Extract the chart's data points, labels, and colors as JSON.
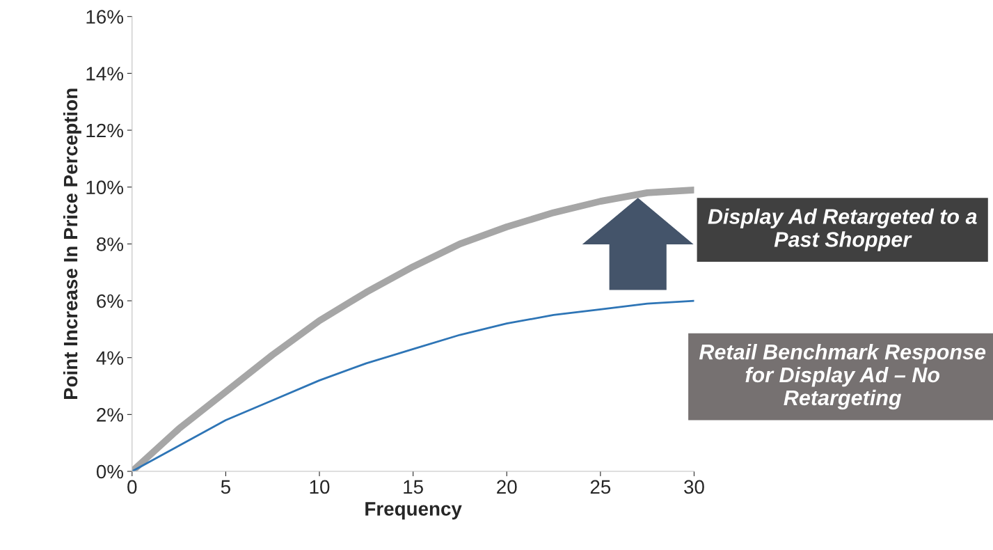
{
  "chart_data": {
    "type": "line",
    "xlabel": "Frequency",
    "ylabel": "Point Increase In Price Perception",
    "x": [
      0,
      2.5,
      5,
      7.5,
      10,
      12.5,
      15,
      17.5,
      20,
      22.5,
      25,
      27.5,
      30
    ],
    "series": [
      {
        "name": "Display Ad Retargeted to a Past Shopper",
        "color": "#a6a6a6",
        "values": [
          0,
          1.5,
          2.8,
          4.1,
          5.3,
          6.3,
          7.2,
          8.0,
          8.6,
          9.1,
          9.5,
          9.8,
          9.9
        ]
      },
      {
        "name": "Retail Benchmark Response for Display Ad – No Retargeting",
        "color": "#2e75b6",
        "values": [
          0,
          0.9,
          1.8,
          2.5,
          3.2,
          3.8,
          4.3,
          4.8,
          5.2,
          5.5,
          5.7,
          5.9,
          6.0
        ]
      }
    ],
    "xlim": [
      0,
      30
    ],
    "xticks": [
      0,
      5,
      10,
      15,
      20,
      25,
      30
    ],
    "ylim": [
      0,
      16
    ],
    "yticks": [
      {
        "value": 0,
        "label": "0%"
      },
      {
        "value": 2,
        "label": "2%"
      },
      {
        "value": 4,
        "label": "4%"
      },
      {
        "value": 6,
        "label": "6%"
      },
      {
        "value": 8,
        "label": "8%"
      },
      {
        "value": 10,
        "label": "10%"
      },
      {
        "value": 12,
        "label": "12%"
      },
      {
        "value": 14,
        "label": "14%"
      },
      {
        "value": 16,
        "label": "16%"
      }
    ],
    "grid": false,
    "legend": false,
    "marker": "none",
    "line_style": "solid"
  }
}
